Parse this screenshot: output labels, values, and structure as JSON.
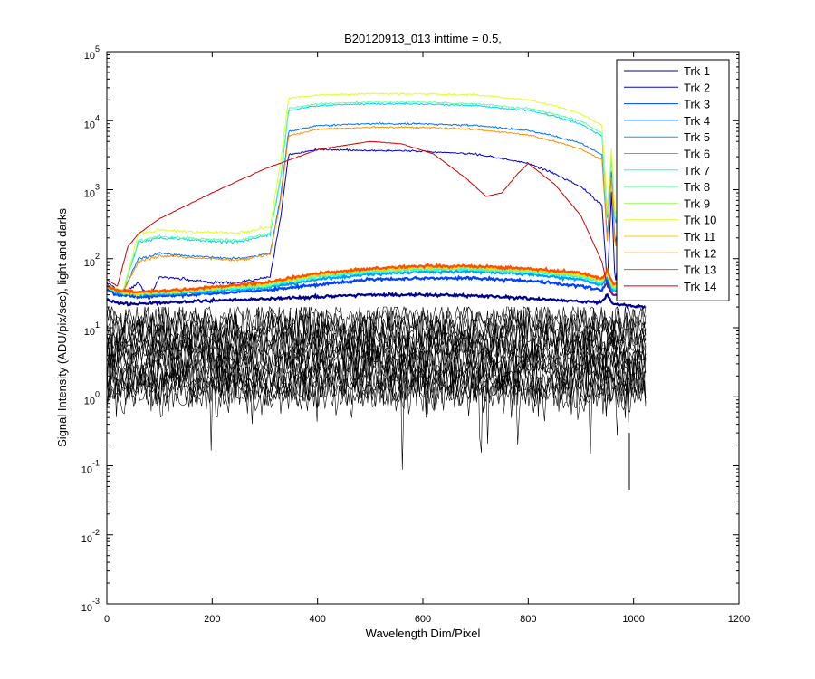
{
  "chart_data": {
    "type": "line",
    "title": "B20120913_013 inttime = 0.5,",
    "xlabel": "Wavelength Dim/Pixel",
    "ylabel": "Signal Intensity (ADU/pix/sec), light and darks",
    "xlim": [
      0,
      1200
    ],
    "ylim": [
      0.001,
      100000
    ],
    "yscale": "log",
    "grid": false,
    "legend_position": "top-right",
    "x_ticks": [
      0,
      200,
      400,
      600,
      800,
      1000,
      1200
    ],
    "x_tick_labels": [
      "0",
      "200",
      "400",
      "600",
      "800",
      "1000",
      "1200"
    ],
    "y_tick_exponents": [
      -3,
      -2,
      -1,
      0,
      1,
      2,
      3,
      4,
      5
    ],
    "y_tick_base": "10",
    "series": [
      {
        "name": "Trk 1",
        "color": "#00008f",
        "points": [
          [
            0,
            25
          ],
          [
            20,
            23
          ],
          [
            60,
            22
          ],
          [
            150,
            24
          ],
          [
            300,
            26
          ],
          [
            400,
            28
          ],
          [
            500,
            30
          ],
          [
            600,
            30
          ],
          [
            700,
            29
          ],
          [
            800,
            27
          ],
          [
            900,
            24
          ],
          [
            940,
            23
          ],
          [
            950,
            30
          ],
          [
            960,
            22
          ],
          [
            1020,
            20
          ]
        ]
      },
      {
        "name": "Trk 2",
        "color": "#0000cc",
        "points": [
          [
            0,
            45
          ],
          [
            30,
            32
          ],
          [
            60,
            45
          ],
          [
            80,
            26
          ],
          [
            100,
            55
          ],
          [
            150,
            50
          ],
          [
            200,
            45
          ],
          [
            250,
            45
          ],
          [
            310,
            55
          ],
          [
            330,
            400
          ],
          [
            345,
            3200
          ],
          [
            400,
            3800
          ],
          [
            500,
            3700
          ],
          [
            600,
            3600
          ],
          [
            700,
            3300
          ],
          [
            800,
            2400
          ],
          [
            850,
            1700
          ],
          [
            900,
            1100
          ],
          [
            940,
            600
          ],
          [
            950,
            40
          ],
          [
            958,
            900
          ],
          [
            965,
            40
          ],
          [
            970,
            90
          ],
          [
            1000,
            60
          ],
          [
            1020,
            50
          ]
        ]
      },
      {
        "name": "Trk 3",
        "color": "#0040ff",
        "points": [
          [
            0,
            35
          ],
          [
            20,
            30
          ],
          [
            60,
            28
          ],
          [
            150,
            30
          ],
          [
            300,
            35
          ],
          [
            400,
            42
          ],
          [
            500,
            50
          ],
          [
            600,
            52
          ],
          [
            700,
            52
          ],
          [
            800,
            48
          ],
          [
            900,
            40
          ],
          [
            940,
            35
          ],
          [
            950,
            45
          ],
          [
            960,
            30
          ],
          [
            1020,
            28
          ]
        ]
      },
      {
        "name": "Trk 4",
        "color": "#0070ff",
        "points": [
          [
            0,
            40
          ],
          [
            30,
            32
          ],
          [
            60,
            100
          ],
          [
            100,
            120
          ],
          [
            150,
            110
          ],
          [
            200,
            105
          ],
          [
            250,
            100
          ],
          [
            310,
            120
          ],
          [
            330,
            800
          ],
          [
            345,
            7000
          ],
          [
            400,
            8500
          ],
          [
            500,
            9000
          ],
          [
            600,
            9000
          ],
          [
            700,
            8500
          ],
          [
            800,
            7200
          ],
          [
            850,
            6000
          ],
          [
            900,
            4700
          ],
          [
            940,
            3200
          ],
          [
            950,
            200
          ],
          [
            958,
            1800
          ],
          [
            965,
            150
          ],
          [
            970,
            300
          ],
          [
            1000,
            220
          ],
          [
            1020,
            180
          ]
        ]
      },
      {
        "name": "Trk 5",
        "color": "#00a0ff",
        "points": [
          [
            0,
            40
          ],
          [
            20,
            32
          ],
          [
            60,
            30
          ],
          [
            150,
            32
          ],
          [
            300,
            38
          ],
          [
            400,
            50
          ],
          [
            500,
            60
          ],
          [
            600,
            65
          ],
          [
            700,
            65
          ],
          [
            800,
            60
          ],
          [
            900,
            50
          ],
          [
            940,
            42
          ],
          [
            950,
            55
          ],
          [
            960,
            35
          ],
          [
            1020,
            32
          ]
        ]
      },
      {
        "name": "Trk 6",
        "color": "#00d0ff",
        "points": [
          [
            0,
            40
          ],
          [
            30,
            33
          ],
          [
            60,
            170
          ],
          [
            100,
            200
          ],
          [
            150,
            190
          ],
          [
            200,
            180
          ],
          [
            250,
            175
          ],
          [
            310,
            220
          ],
          [
            330,
            1500
          ],
          [
            345,
            14000
          ],
          [
            400,
            16500
          ],
          [
            500,
            17500
          ],
          [
            600,
            17500
          ],
          [
            700,
            16500
          ],
          [
            800,
            14000
          ],
          [
            850,
            11500
          ],
          [
            900,
            9000
          ],
          [
            940,
            6000
          ],
          [
            950,
            400
          ],
          [
            958,
            3000
          ],
          [
            965,
            300
          ],
          [
            970,
            500
          ],
          [
            1000,
            350
          ],
          [
            1020,
            300
          ]
        ]
      },
      {
        "name": "Trk 7",
        "color": "#20ffdf",
        "points": [
          [
            0,
            40
          ],
          [
            20,
            33
          ],
          [
            60,
            31
          ],
          [
            150,
            34
          ],
          [
            300,
            40
          ],
          [
            400,
            55
          ],
          [
            500,
            65
          ],
          [
            600,
            70
          ],
          [
            700,
            70
          ],
          [
            800,
            65
          ],
          [
            900,
            55
          ],
          [
            940,
            45
          ],
          [
            950,
            60
          ],
          [
            960,
            38
          ],
          [
            1020,
            34
          ]
        ]
      },
      {
        "name": "Trk 8",
        "color": "#60ff9f",
        "points": [
          [
            0,
            40
          ],
          [
            30,
            33
          ],
          [
            60,
            180
          ],
          [
            100,
            210
          ],
          [
            150,
            200
          ],
          [
            200,
            190
          ],
          [
            250,
            185
          ],
          [
            310,
            230
          ],
          [
            330,
            1600
          ],
          [
            345,
            15000
          ],
          [
            400,
            17500
          ],
          [
            500,
            18500
          ],
          [
            600,
            18500
          ],
          [
            700,
            17500
          ],
          [
            800,
            15000
          ],
          [
            850,
            12500
          ],
          [
            900,
            9800
          ],
          [
            940,
            6500
          ],
          [
            950,
            450
          ],
          [
            958,
            3300
          ],
          [
            965,
            320
          ],
          [
            970,
            550
          ],
          [
            1000,
            380
          ],
          [
            1020,
            320
          ]
        ]
      },
      {
        "name": "Trk 9",
        "color": "#9fff60",
        "points": [
          [
            0,
            40
          ],
          [
            20,
            33
          ],
          [
            60,
            31
          ],
          [
            150,
            34
          ],
          [
            300,
            42
          ],
          [
            400,
            58
          ],
          [
            500,
            68
          ],
          [
            600,
            74
          ],
          [
            700,
            74
          ],
          [
            800,
            68
          ],
          [
            900,
            58
          ],
          [
            940,
            48
          ],
          [
            950,
            62
          ],
          [
            960,
            40
          ],
          [
            1020,
            35
          ]
        ]
      },
      {
        "name": "Trk 10",
        "color": "#dfff20",
        "points": [
          [
            0,
            40
          ],
          [
            30,
            33
          ],
          [
            60,
            230
          ],
          [
            100,
            260
          ],
          [
            150,
            250
          ],
          [
            200,
            240
          ],
          [
            250,
            235
          ],
          [
            310,
            290
          ],
          [
            330,
            2500
          ],
          [
            345,
            21000
          ],
          [
            400,
            23500
          ],
          [
            500,
            24500
          ],
          [
            600,
            24500
          ],
          [
            700,
            23500
          ],
          [
            800,
            20000
          ],
          [
            850,
            16500
          ],
          [
            900,
            12500
          ],
          [
            940,
            8500
          ],
          [
            950,
            550
          ],
          [
            958,
            4000
          ],
          [
            965,
            380
          ],
          [
            970,
            650
          ],
          [
            1000,
            450
          ],
          [
            1020,
            380
          ]
        ]
      },
      {
        "name": "Trk 11",
        "color": "#ffcf00",
        "points": [
          [
            0,
            40
          ],
          [
            20,
            34
          ],
          [
            60,
            32
          ],
          [
            150,
            35
          ],
          [
            300,
            44
          ],
          [
            400,
            60
          ],
          [
            500,
            70
          ],
          [
            600,
            76
          ],
          [
            700,
            76
          ],
          [
            800,
            70
          ],
          [
            900,
            60
          ],
          [
            940,
            50
          ],
          [
            950,
            65
          ],
          [
            960,
            42
          ],
          [
            1020,
            36
          ]
        ]
      },
      {
        "name": "Trk 12",
        "color": "#ff9000",
        "points": [
          [
            0,
            40
          ],
          [
            30,
            33
          ],
          [
            60,
            90
          ],
          [
            100,
            110
          ],
          [
            150,
            105
          ],
          [
            200,
            100
          ],
          [
            250,
            95
          ],
          [
            310,
            115
          ],
          [
            330,
            700
          ],
          [
            345,
            6000
          ],
          [
            400,
            7500
          ],
          [
            500,
            8000
          ],
          [
            600,
            8000
          ],
          [
            700,
            7500
          ],
          [
            800,
            6200
          ],
          [
            850,
            5000
          ],
          [
            900,
            3900
          ],
          [
            940,
            2700
          ],
          [
            950,
            180
          ],
          [
            958,
            1500
          ],
          [
            965,
            130
          ],
          [
            970,
            260
          ],
          [
            1000,
            200
          ],
          [
            1020,
            170
          ]
        ]
      },
      {
        "name": "Trk 13",
        "color": "#ff5000",
        "points": [
          [
            0,
            40
          ],
          [
            20,
            35
          ],
          [
            60,
            33
          ],
          [
            150,
            36
          ],
          [
            300,
            45
          ],
          [
            400,
            62
          ],
          [
            500,
            72
          ],
          [
            600,
            78
          ],
          [
            700,
            78
          ],
          [
            800,
            72
          ],
          [
            900,
            62
          ],
          [
            940,
            52
          ],
          [
            950,
            68
          ],
          [
            960,
            44
          ],
          [
            1020,
            38
          ]
        ]
      },
      {
        "name": "Trk 14",
        "color": "#cf0000",
        "points": [
          [
            0,
            50
          ],
          [
            20,
            40
          ],
          [
            40,
            150
          ],
          [
            60,
            230
          ],
          [
            100,
            380
          ],
          [
            200,
            900
          ],
          [
            300,
            2000
          ],
          [
            400,
            3800
          ],
          [
            500,
            5000
          ],
          [
            560,
            4600
          ],
          [
            620,
            3300
          ],
          [
            680,
            1500
          ],
          [
            720,
            800
          ],
          [
            750,
            900
          ],
          [
            780,
            1700
          ],
          [
            800,
            2400
          ],
          [
            850,
            1200
          ],
          [
            900,
            420
          ],
          [
            940,
            90
          ],
          [
            950,
            40
          ],
          [
            960,
            30
          ],
          [
            1020,
            25
          ]
        ]
      }
    ]
  }
}
